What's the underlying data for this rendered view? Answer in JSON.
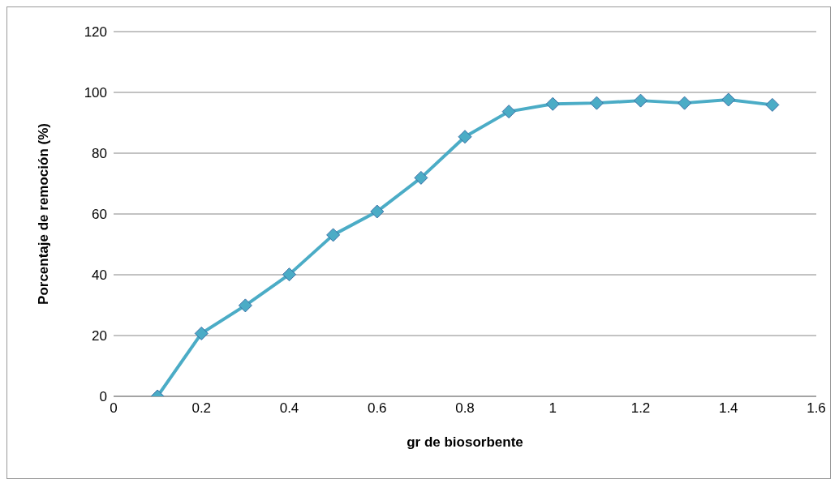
{
  "chart_data": {
    "type": "line",
    "xlabel": "gr de biosorbente",
    "ylabel": "Porcentaje de remoción (%)",
    "x": [
      0.1,
      0.2,
      0.3,
      0.4,
      0.5,
      0.6,
      0.7,
      0.8,
      0.9,
      1.0,
      1.1,
      1.2,
      1.3,
      1.4,
      1.5
    ],
    "series": [
      {
        "color": "#4bacc6",
        "values": [
          0,
          20.7,
          29.9,
          40.1,
          53.1,
          60.8,
          71.9,
          85.4,
          93.7,
          96.2,
          96.5,
          97.3,
          96.5,
          97.6,
          95.9
        ]
      }
    ],
    "xlim": [
      0,
      1.6
    ],
    "xticks": [
      0,
      0.2,
      0.4,
      0.6,
      0.8,
      1,
      1.2,
      1.4,
      1.6
    ],
    "ylim": [
      0,
      120
    ],
    "yticks": [
      0,
      20,
      40,
      60,
      80,
      100,
      120
    ],
    "grid": "y",
    "legend": false,
    "marker": "diamond",
    "line_style": "solid"
  }
}
